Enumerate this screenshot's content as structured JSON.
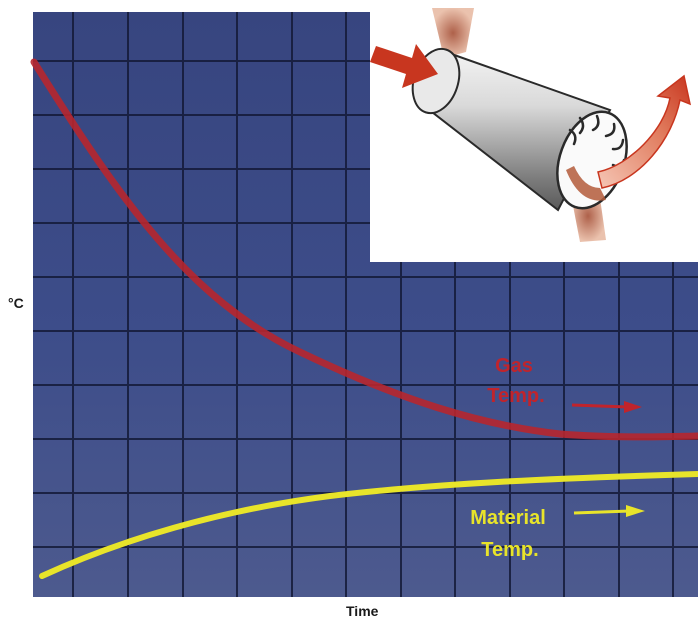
{
  "axes": {
    "y_label": "°C",
    "x_label": "Time"
  },
  "curves": {
    "gas": {
      "label_line1": "Gas",
      "label_line2": "Temp.",
      "color": "#c0242c"
    },
    "material": {
      "label_line1": "Material",
      "label_line2": "Temp.",
      "color": "#e8e42a"
    }
  },
  "colors": {
    "plot_background": "#3b4a86",
    "grid": "#101530",
    "arrow": "#c8361f",
    "drum": "#cfcfcf"
  }
}
